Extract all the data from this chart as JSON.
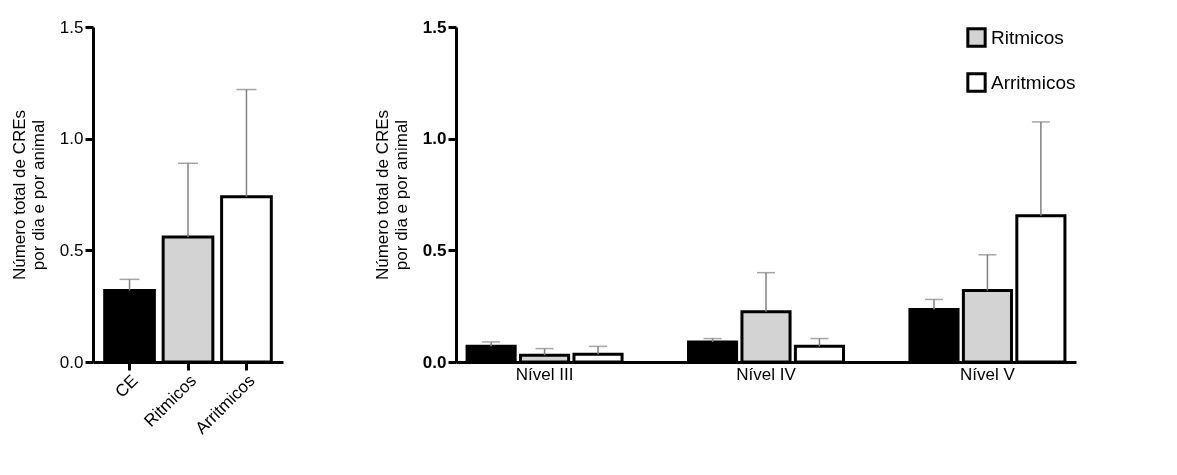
{
  "chart_data": [
    {
      "type": "bar",
      "ylabel": "Número total de CREs\npor dia e por animal",
      "categories": [
        "CE",
        "Ritmicos",
        "Arritmicos"
      ],
      "values": [
        0.32,
        0.56,
        0.74
      ],
      "colors": [
        "#000000",
        "#d3d3d3",
        "#ffffff"
      ],
      "errors": [
        [
          0.32,
          0.37
        ],
        [
          0.56,
          0.89
        ],
        [
          0.74,
          1.22
        ]
      ],
      "ylim": [
        0,
        1.5
      ],
      "yticks": [
        {
          "value": 0,
          "label": "0.0"
        },
        {
          "value": 0.5,
          "label": "0.5"
        },
        {
          "value": 1,
          "label": "1.0"
        },
        {
          "value": 1.5,
          "label": "1.5"
        }
      ],
      "grid": false
    },
    {
      "type": "bar",
      "ylabel": "Número total de CREs\npor dia e por animal",
      "categories": [
        "Nível III",
        "Nível IV",
        "Nível V"
      ],
      "series": [
        {
          "color": "#000000",
          "values": [
            0.07,
            0.09,
            0.235
          ],
          "errors": [
            [
              0.07,
              0.09
            ],
            [
              0.09,
              0.105
            ],
            [
              0.235,
              0.28
            ]
          ]
        },
        {
          "name": "Ritmicos",
          "color": "#d3d3d3",
          "values": [
            0.03,
            0.225,
            0.32
          ],
          "errors": [
            [
              0.03,
              0.06
            ],
            [
              0.225,
              0.4
            ],
            [
              0.32,
              0.48
            ]
          ]
        },
        {
          "name": "Arritmicos",
          "color": "#ffffff",
          "values": [
            0.035,
            0.07,
            0.655
          ],
          "errors": [
            [
              0.035,
              0.07
            ],
            [
              0.07,
              0.105
            ],
            [
              0.655,
              1.075
            ]
          ]
        }
      ],
      "ylim": [
        0,
        1.5
      ],
      "yticks": [
        {
          "value": 0,
          "label": "0.0"
        },
        {
          "value": 0.5,
          "label": "0.5"
        },
        {
          "value": 1,
          "label": "1.0"
        },
        {
          "value": 1.5,
          "label": "1.5"
        }
      ],
      "grid": false,
      "legend": "top right"
    }
  ]
}
